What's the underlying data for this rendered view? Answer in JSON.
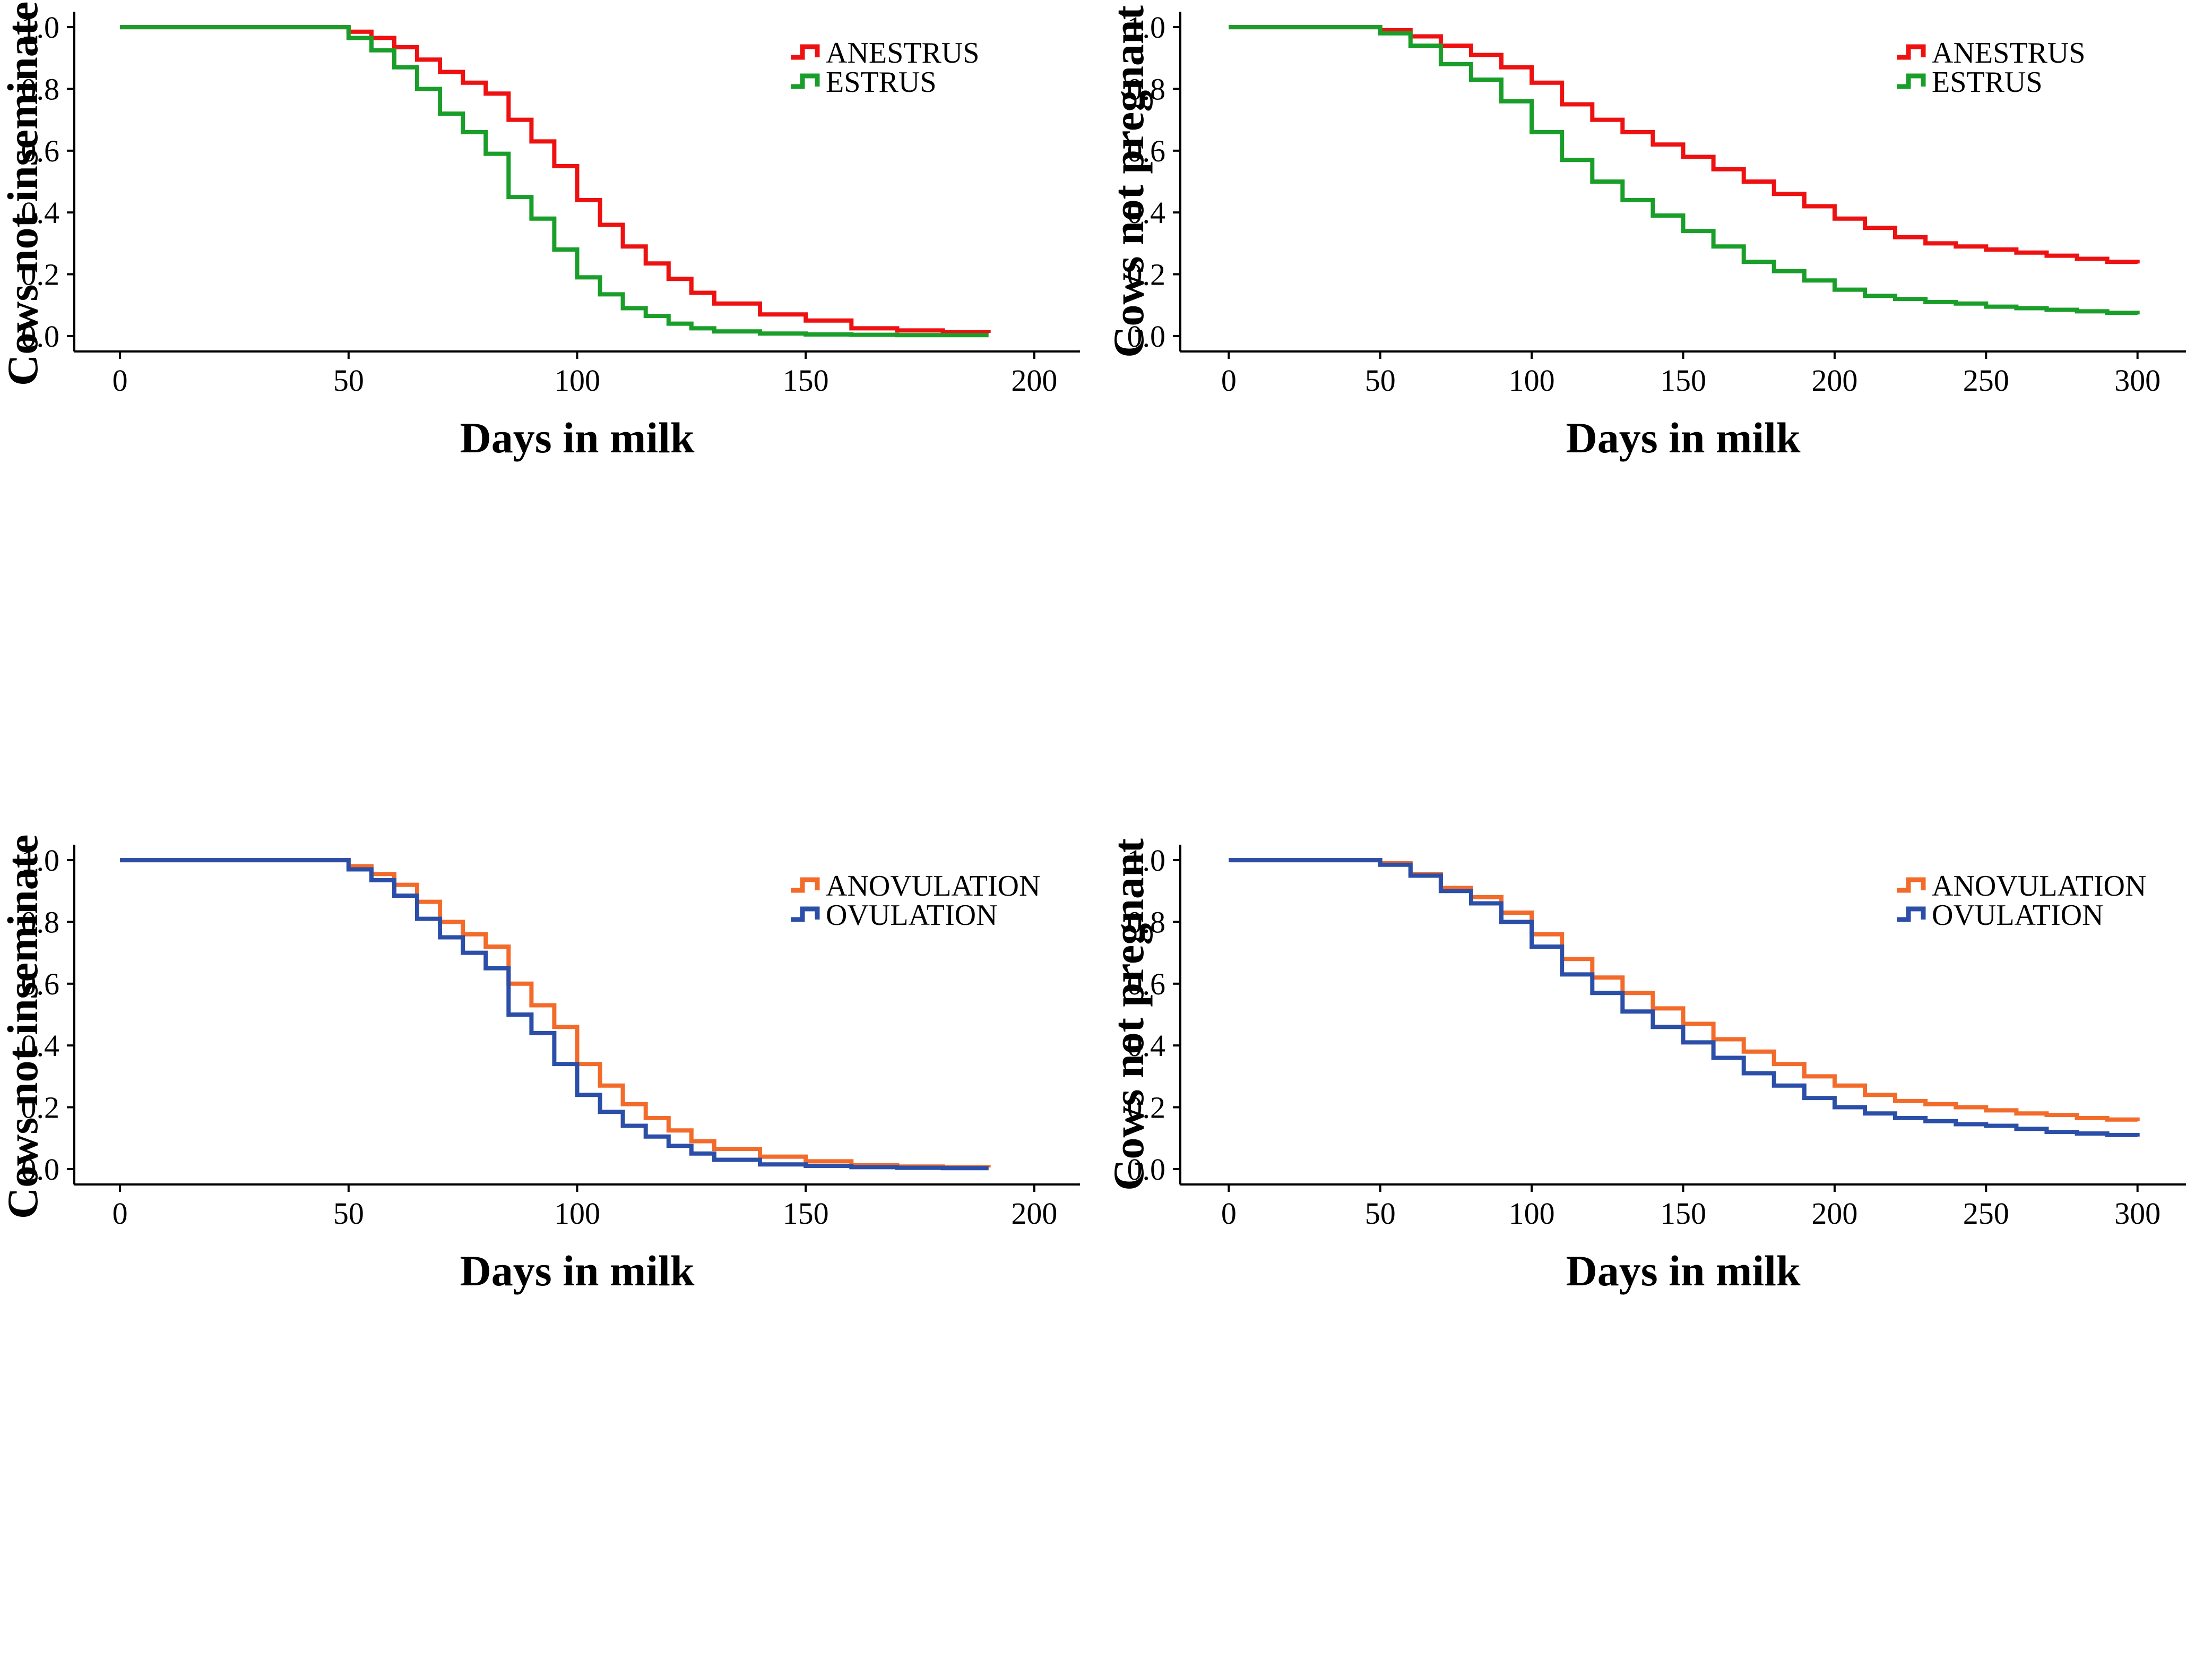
{
  "chart_data": [
    {
      "type": "line",
      "xlabel": "Days in milk",
      "ylabel": "Cows not inseminated",
      "xlim": [
        -10,
        210
      ],
      "ylim": [
        -0.05,
        1.05
      ],
      "xticks": [
        0,
        50,
        100,
        150,
        200
      ],
      "yticks": [
        0.0,
        0.2,
        0.4,
        0.6,
        0.8,
        1.0
      ],
      "grid": false,
      "legend_position": "top-right",
      "series": [
        {
          "name": "ANESTRUS",
          "color": "#ee1111",
          "x": [
            0,
            42,
            50,
            55,
            60,
            65,
            70,
            75,
            80,
            85,
            90,
            95,
            100,
            105,
            110,
            115,
            120,
            125,
            130,
            140,
            150,
            160,
            170,
            180,
            190
          ],
          "y": [
            1.0,
            1.0,
            0.985,
            0.965,
            0.935,
            0.895,
            0.855,
            0.82,
            0.785,
            0.7,
            0.63,
            0.55,
            0.44,
            0.36,
            0.29,
            0.235,
            0.185,
            0.14,
            0.105,
            0.07,
            0.05,
            0.025,
            0.018,
            0.012,
            0.01
          ]
        },
        {
          "name": "ESTRUS",
          "color": "#1a9e2a",
          "x": [
            0,
            42,
            50,
            55,
            60,
            65,
            70,
            75,
            80,
            85,
            90,
            95,
            100,
            105,
            110,
            115,
            120,
            125,
            130,
            140,
            150,
            160,
            170,
            180,
            190
          ],
          "y": [
            1.0,
            1.0,
            0.965,
            0.925,
            0.87,
            0.8,
            0.72,
            0.66,
            0.59,
            0.45,
            0.38,
            0.28,
            0.19,
            0.135,
            0.09,
            0.065,
            0.04,
            0.025,
            0.015,
            0.008,
            0.005,
            0.004,
            0.003,
            0.003,
            0.003
          ]
        }
      ]
    },
    {
      "type": "line",
      "xlabel": "Days in milk",
      "ylabel": "Cows not pregnant",
      "xlim": [
        -16,
        316
      ],
      "ylim": [
        -0.05,
        1.05
      ],
      "xticks": [
        0,
        50,
        100,
        150,
        200,
        250,
        300
      ],
      "yticks": [
        0.0,
        0.2,
        0.4,
        0.6,
        0.8,
        1.0
      ],
      "grid": false,
      "legend_position": "top-right",
      "series": [
        {
          "name": "ANESTRUS",
          "color": "#ee1111",
          "x": [
            0,
            42,
            50,
            60,
            70,
            80,
            90,
            100,
            110,
            120,
            130,
            140,
            150,
            160,
            170,
            180,
            190,
            200,
            210,
            220,
            230,
            240,
            250,
            260,
            270,
            280,
            290,
            300
          ],
          "y": [
            1.0,
            1.0,
            0.99,
            0.97,
            0.94,
            0.91,
            0.87,
            0.82,
            0.75,
            0.7,
            0.66,
            0.62,
            0.58,
            0.54,
            0.5,
            0.46,
            0.42,
            0.38,
            0.35,
            0.32,
            0.3,
            0.29,
            0.28,
            0.27,
            0.26,
            0.25,
            0.24,
            0.235
          ]
        },
        {
          "name": "ESTRUS",
          "color": "#1a9e2a",
          "x": [
            0,
            42,
            50,
            60,
            70,
            80,
            90,
            100,
            110,
            120,
            130,
            140,
            150,
            160,
            170,
            180,
            190,
            200,
            210,
            220,
            230,
            240,
            250,
            260,
            270,
            280,
            290,
            300
          ],
          "y": [
            1.0,
            1.0,
            0.98,
            0.94,
            0.88,
            0.83,
            0.76,
            0.66,
            0.57,
            0.5,
            0.44,
            0.39,
            0.34,
            0.29,
            0.24,
            0.21,
            0.18,
            0.15,
            0.13,
            0.12,
            0.11,
            0.105,
            0.095,
            0.09,
            0.085,
            0.08,
            0.075,
            0.07
          ]
        }
      ]
    },
    {
      "type": "line",
      "xlabel": "Days in milk",
      "ylabel": "Cows not inseminated",
      "xlim": [
        -10,
        210
      ],
      "ylim": [
        -0.05,
        1.05
      ],
      "xticks": [
        0,
        50,
        100,
        150,
        200
      ],
      "yticks": [
        0.0,
        0.2,
        0.4,
        0.6,
        0.8,
        1.0
      ],
      "grid": false,
      "legend_position": "top-right",
      "series": [
        {
          "name": "ANOVULATION",
          "color": "#f26b2a",
          "x": [
            0,
            42,
            50,
            55,
            60,
            65,
            70,
            75,
            80,
            85,
            90,
            95,
            100,
            105,
            110,
            115,
            120,
            125,
            130,
            140,
            150,
            160,
            170,
            180,
            190
          ],
          "y": [
            1.0,
            1.0,
            0.98,
            0.955,
            0.92,
            0.865,
            0.8,
            0.76,
            0.72,
            0.6,
            0.53,
            0.46,
            0.34,
            0.27,
            0.21,
            0.165,
            0.125,
            0.09,
            0.065,
            0.04,
            0.025,
            0.012,
            0.008,
            0.006,
            0.005
          ]
        },
        {
          "name": "OVULATION",
          "color": "#2b4fa8",
          "x": [
            0,
            42,
            50,
            55,
            60,
            65,
            70,
            75,
            80,
            85,
            90,
            95,
            100,
            105,
            110,
            115,
            120,
            125,
            130,
            140,
            150,
            160,
            170,
            180,
            190
          ],
          "y": [
            1.0,
            1.0,
            0.97,
            0.935,
            0.885,
            0.81,
            0.75,
            0.7,
            0.65,
            0.5,
            0.44,
            0.34,
            0.24,
            0.185,
            0.14,
            0.105,
            0.075,
            0.05,
            0.03,
            0.015,
            0.01,
            0.006,
            0.004,
            0.003,
            0.003
          ]
        }
      ]
    },
    {
      "type": "line",
      "xlabel": "Days in milk",
      "ylabel": "Cows not pregnant",
      "xlim": [
        -16,
        316
      ],
      "ylim": [
        -0.05,
        1.05
      ],
      "xticks": [
        0,
        50,
        100,
        150,
        200,
        250,
        300
      ],
      "yticks": [
        0.0,
        0.2,
        0.4,
        0.6,
        0.8,
        1.0
      ],
      "grid": false,
      "legend_position": "top-right",
      "series": [
        {
          "name": "ANOVULATION",
          "color": "#f26b2a",
          "x": [
            0,
            42,
            50,
            60,
            70,
            80,
            90,
            100,
            110,
            120,
            130,
            140,
            150,
            160,
            170,
            180,
            190,
            200,
            210,
            220,
            230,
            240,
            250,
            260,
            270,
            280,
            290,
            300
          ],
          "y": [
            1.0,
            1.0,
            0.99,
            0.955,
            0.91,
            0.88,
            0.83,
            0.76,
            0.68,
            0.62,
            0.57,
            0.52,
            0.47,
            0.42,
            0.38,
            0.34,
            0.3,
            0.27,
            0.24,
            0.22,
            0.21,
            0.2,
            0.19,
            0.18,
            0.175,
            0.165,
            0.16,
            0.155
          ]
        },
        {
          "name": "OVULATION",
          "color": "#2b4fa8",
          "x": [
            0,
            42,
            50,
            60,
            70,
            80,
            90,
            100,
            110,
            120,
            130,
            140,
            150,
            160,
            170,
            180,
            190,
            200,
            210,
            220,
            230,
            240,
            250,
            260,
            270,
            280,
            290,
            300
          ],
          "y": [
            1.0,
            1.0,
            0.985,
            0.95,
            0.9,
            0.86,
            0.8,
            0.72,
            0.63,
            0.57,
            0.51,
            0.46,
            0.41,
            0.36,
            0.31,
            0.27,
            0.23,
            0.2,
            0.18,
            0.165,
            0.155,
            0.145,
            0.14,
            0.13,
            0.12,
            0.115,
            0.11,
            0.105
          ]
        }
      ]
    }
  ]
}
